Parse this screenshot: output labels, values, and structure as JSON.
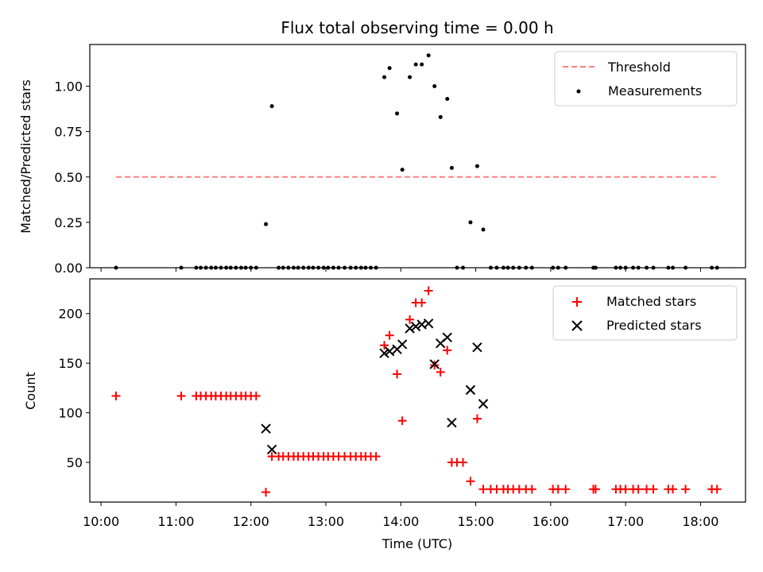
{
  "title": "Flux total observing time = 0.00 h",
  "colors": {
    "matched": "#ff0000",
    "predicted": "#000000",
    "threshold": "#ff7f7f",
    "measurement": "#000000"
  },
  "top_panel": {
    "ylabel": "Matched/Predicted stars",
    "legend": {
      "threshold": "Threshold",
      "measurements": "Measurements"
    },
    "yticks": [
      "0.00",
      "0.25",
      "0.50",
      "0.75",
      "1.00"
    ]
  },
  "bottom_panel": {
    "ylabel": "Count",
    "xlabel": "Time (UTC)",
    "legend": {
      "matched": "Matched stars",
      "predicted": "Predicted stars"
    },
    "yticks": [
      "50",
      "100",
      "150",
      "200"
    ]
  },
  "xticks": [
    "10:00",
    "11:00",
    "12:00",
    "13:00",
    "14:00",
    "15:00",
    "16:00",
    "17:00",
    "18:00"
  ],
  "chart_data": [
    {
      "type": "scatter",
      "panel": "top",
      "xlabel": "",
      "ylabel": "Matched/Predicted stars",
      "xlim": [
        9.85,
        18.6
      ],
      "ylim": [
        0,
        1.23
      ],
      "threshold": {
        "value": 0.5,
        "x_range": [
          10.2,
          18.23
        ],
        "label": "Threshold"
      },
      "series": [
        {
          "name": "Measurements",
          "x": [
            10.2,
            11.07,
            11.27,
            11.33,
            11.4,
            11.47,
            11.53,
            11.6,
            11.67,
            11.73,
            11.8,
            11.87,
            11.93,
            12.0,
            12.07,
            12.2,
            12.28,
            12.37,
            12.43,
            12.5,
            12.57,
            12.63,
            12.7,
            12.77,
            12.83,
            12.9,
            12.97,
            13.03,
            13.1,
            13.17,
            13.25,
            13.33,
            13.4,
            13.47,
            13.53,
            13.6,
            13.67,
            13.78,
            13.85,
            13.95,
            14.02,
            14.12,
            14.2,
            14.28,
            14.37,
            14.45,
            14.53,
            14.62,
            14.68,
            14.75,
            14.83,
            14.93,
            15.02,
            15.1,
            15.2,
            15.28,
            15.37,
            15.43,
            15.5,
            15.58,
            15.67,
            15.75,
            16.03,
            16.1,
            16.2,
            16.57,
            16.6,
            16.87,
            16.93,
            17.0,
            17.1,
            17.17,
            17.28,
            17.37,
            17.57,
            17.63,
            17.8,
            18.15,
            18.22
          ],
          "y": [
            0,
            0,
            0,
            0,
            0,
            0,
            0,
            0,
            0,
            0,
            0,
            0,
            0,
            0,
            0,
            0.24,
            0.89,
            0,
            0,
            0,
            0,
            0,
            0,
            0,
            0,
            0,
            0,
            0,
            0,
            0,
            0,
            0,
            0,
            0,
            0,
            0,
            0,
            1.05,
            1.1,
            0.85,
            0.54,
            1.05,
            1.12,
            1.12,
            1.17,
            1.0,
            0.83,
            0.93,
            0.55,
            0,
            0,
            0.25,
            0.56,
            0.21,
            0,
            0,
            0,
            0,
            0,
            0,
            0,
            0,
            0,
            0,
            0,
            0,
            0,
            0,
            0,
            0,
            0,
            0,
            0,
            0,
            0,
            0,
            0,
            0,
            0
          ]
        }
      ]
    },
    {
      "type": "scatter",
      "panel": "bottom",
      "xlabel": "Time (UTC)",
      "ylabel": "Count",
      "xlim": [
        9.85,
        18.6
      ],
      "ylim": [
        10,
        235
      ],
      "series": [
        {
          "name": "Matched stars",
          "marker": "+",
          "x": [
            10.2,
            11.07,
            11.27,
            11.33,
            11.4,
            11.47,
            11.53,
            11.6,
            11.67,
            11.73,
            11.8,
            11.87,
            11.93,
            12.0,
            12.07,
            12.2,
            12.28,
            12.37,
            12.43,
            12.5,
            12.57,
            12.63,
            12.7,
            12.77,
            12.83,
            12.9,
            12.97,
            13.03,
            13.1,
            13.17,
            13.25,
            13.33,
            13.4,
            13.47,
            13.53,
            13.6,
            13.67,
            13.78,
            13.85,
            13.95,
            14.02,
            14.12,
            14.2,
            14.28,
            14.37,
            14.45,
            14.53,
            14.62,
            14.68,
            14.75,
            14.83,
            14.93,
            15.02,
            15.1,
            15.2,
            15.28,
            15.37,
            15.43,
            15.5,
            15.58,
            15.67,
            15.75,
            16.03,
            16.1,
            16.2,
            16.57,
            16.6,
            16.87,
            16.93,
            17.0,
            17.1,
            17.17,
            17.28,
            17.37,
            17.57,
            17.63,
            17.8,
            18.15,
            18.22
          ],
          "y": [
            117,
            117,
            117,
            117,
            117,
            117,
            117,
            117,
            117,
            117,
            117,
            117,
            117,
            117,
            117,
            20,
            56,
            56,
            56,
            56,
            56,
            56,
            56,
            56,
            56,
            56,
            56,
            56,
            56,
            56,
            56,
            56,
            56,
            56,
            56,
            56,
            56,
            168,
            178,
            139,
            92,
            194,
            211,
            211,
            223,
            148,
            141,
            163,
            50,
            50,
            50,
            31,
            94,
            23,
            23,
            23,
            23,
            23,
            23,
            23,
            23,
            23,
            23,
            23,
            23,
            23,
            23,
            23,
            23,
            23,
            23,
            23,
            23,
            23,
            23,
            23,
            23,
            23,
            23
          ]
        },
        {
          "name": "Predicted stars",
          "marker": "x",
          "x": [
            12.2,
            12.28,
            13.78,
            13.85,
            13.95,
            14.02,
            14.12,
            14.2,
            14.28,
            14.37,
            14.45,
            14.53,
            14.62,
            14.68,
            14.93,
            15.02,
            15.1
          ],
          "y": [
            84,
            63,
            160,
            162,
            164,
            169,
            185,
            187,
            189,
            190,
            149,
            170,
            176,
            90,
            123,
            166,
            109
          ]
        }
      ]
    }
  ]
}
